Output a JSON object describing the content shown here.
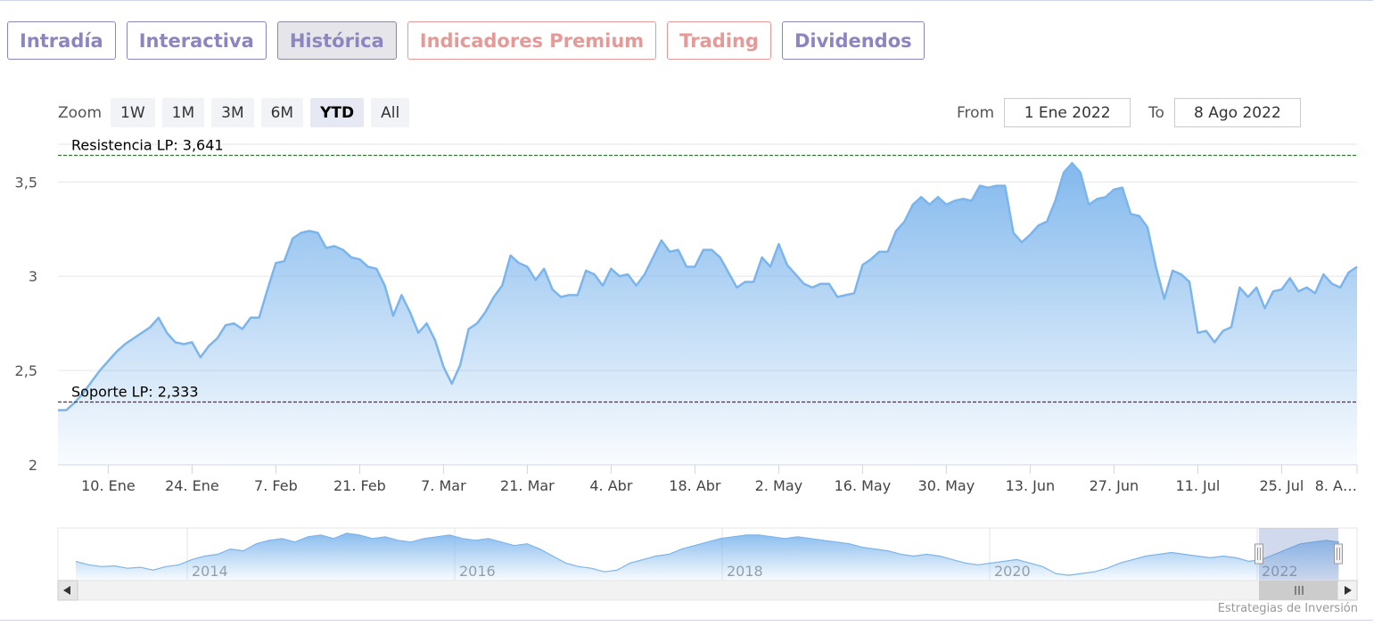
{
  "tabs": [
    {
      "label": "Intradía",
      "style": "normal"
    },
    {
      "label": "Interactiva",
      "style": "normal"
    },
    {
      "label": "Histórica",
      "style": "active"
    },
    {
      "label": "Indicadores Premium",
      "style": "red"
    },
    {
      "label": "Trading",
      "style": "red"
    },
    {
      "label": "Dividendos",
      "style": "normal"
    }
  ],
  "zoom": {
    "label": "Zoom",
    "buttons": [
      "1W",
      "1M",
      "3M",
      "6M",
      "YTD",
      "All"
    ],
    "selected": "YTD"
  },
  "range": {
    "from_label": "From",
    "from_value": "1 Ene 2022",
    "to_label": "To",
    "to_value": "8 Ago 2022"
  },
  "credit": "Estrategias de Inversión",
  "colors": {
    "line": "#7cb5ec",
    "resistance": "#2f7a2f",
    "support": "#8b1a2b",
    "accent": "#8b85c0",
    "red_tab": "#e59a97"
  },
  "chart_data": {
    "type": "area",
    "ylim": [
      2,
      3.7
    ],
    "yticks": [
      "3,5",
      "3",
      "2,5",
      "2"
    ],
    "ytick_values": [
      3.5,
      3,
      2.5,
      2
    ],
    "xlim_index": [
      0,
      155
    ],
    "xticks": [
      {
        "label": "10. Ene",
        "i": 6
      },
      {
        "label": "24. Ene",
        "i": 16
      },
      {
        "label": "7. Feb",
        "i": 26
      },
      {
        "label": "21. Feb",
        "i": 36
      },
      {
        "label": "7. Mar",
        "i": 46
      },
      {
        "label": "21. Mar",
        "i": 56
      },
      {
        "label": "4. Abr",
        "i": 66
      },
      {
        "label": "18. Abr",
        "i": 76
      },
      {
        "label": "2. May",
        "i": 86
      },
      {
        "label": "16. May",
        "i": 96
      },
      {
        "label": "30. May",
        "i": 106
      },
      {
        "label": "13. Jun",
        "i": 116
      },
      {
        "label": "27. Jun",
        "i": 126
      },
      {
        "label": "11. Jul",
        "i": 136
      },
      {
        "label": "25. Jul",
        "i": 146
      },
      {
        "label": "8. A…",
        "i": 155
      }
    ],
    "values": [
      2.29,
      2.29,
      2.33,
      2.38,
      2.44,
      2.5,
      2.55,
      2.6,
      2.64,
      2.67,
      2.7,
      2.73,
      2.78,
      2.7,
      2.65,
      2.64,
      2.65,
      2.57,
      2.63,
      2.67,
      2.74,
      2.75,
      2.72,
      2.78,
      2.78,
      2.93,
      3.07,
      3.08,
      3.2,
      3.23,
      3.24,
      3.23,
      3.15,
      3.16,
      3.14,
      3.1,
      3.09,
      3.05,
      3.04,
      2.95,
      2.79,
      2.9,
      2.81,
      2.7,
      2.75,
      2.66,
      2.52,
      2.43,
      2.53,
      2.72,
      2.75,
      2.81,
      2.89,
      2.95,
      3.11,
      3.07,
      3.05,
      2.98,
      3.04,
      2.93,
      2.89,
      2.9,
      2.9,
      3.03,
      3.01,
      2.95,
      3.04,
      3.0,
      3.01,
      2.95,
      3.01,
      3.1,
      3.19,
      3.13,
      3.14,
      3.05,
      3.05,
      3.14,
      3.14,
      3.1,
      3.02,
      2.94,
      2.97,
      2.97,
      3.1,
      3.05,
      3.17,
      3.06,
      3.01,
      2.96,
      2.94,
      2.96,
      2.96,
      2.89,
      2.9,
      2.91,
      3.06,
      3.09,
      3.13,
      3.13,
      3.24,
      3.29,
      3.38,
      3.42,
      3.38,
      3.42,
      3.38,
      3.4,
      3.41,
      3.4,
      3.48,
      3.47,
      3.48,
      3.48,
      3.23,
      3.18,
      3.22,
      3.27,
      3.29,
      3.4,
      3.55,
      3.6,
      3.55,
      3.38,
      3.41,
      3.42,
      3.46,
      3.47,
      3.33,
      3.32,
      3.26,
      3.05,
      2.88,
      3.03,
      3.01,
      2.97,
      2.7,
      2.71,
      2.65,
      2.71,
      2.73,
      2.94,
      2.89,
      2.94,
      2.83,
      2.92,
      2.93,
      2.99,
      2.92,
      2.94,
      2.91,
      3.01,
      2.96,
      2.94,
      3.02,
      3.05
    ],
    "lines": [
      {
        "label": "Resistencia LP: 3,641",
        "value": 3.641,
        "color": "#2f7a2f"
      },
      {
        "label": "Soporte LP: 2,333",
        "value": 2.333,
        "color": "#8b1a2b"
      }
    ],
    "navigator": {
      "year_labels": [
        "2014",
        "2016",
        "2018",
        "2020",
        "2022"
      ],
      "values": [
        2.55,
        2.45,
        2.4,
        2.42,
        2.35,
        2.38,
        2.3,
        2.4,
        2.45,
        2.6,
        2.7,
        2.75,
        2.9,
        2.85,
        3.05,
        3.15,
        3.2,
        3.1,
        3.25,
        3.3,
        3.2,
        3.35,
        3.3,
        3.2,
        3.25,
        3.15,
        3.1,
        3.2,
        3.25,
        3.3,
        3.2,
        3.15,
        3.2,
        3.1,
        3.0,
        3.05,
        2.9,
        2.7,
        2.5,
        2.4,
        2.35,
        2.25,
        2.3,
        2.5,
        2.6,
        2.7,
        2.75,
        2.9,
        3.0,
        3.1,
        3.2,
        3.25,
        3.3,
        3.3,
        3.25,
        3.2,
        3.25,
        3.2,
        3.15,
        3.1,
        3.05,
        2.95,
        2.9,
        2.85,
        2.75,
        2.7,
        2.75,
        2.7,
        2.6,
        2.5,
        2.45,
        2.5,
        2.55,
        2.6,
        2.5,
        2.4,
        2.2,
        2.15,
        2.2,
        2.25,
        2.35,
        2.5,
        2.6,
        2.7,
        2.75,
        2.8,
        2.75,
        2.7,
        2.65,
        2.7,
        2.65,
        2.55,
        2.6,
        2.75,
        2.9,
        3.05,
        3.1,
        3.15,
        3.1
      ]
    }
  }
}
